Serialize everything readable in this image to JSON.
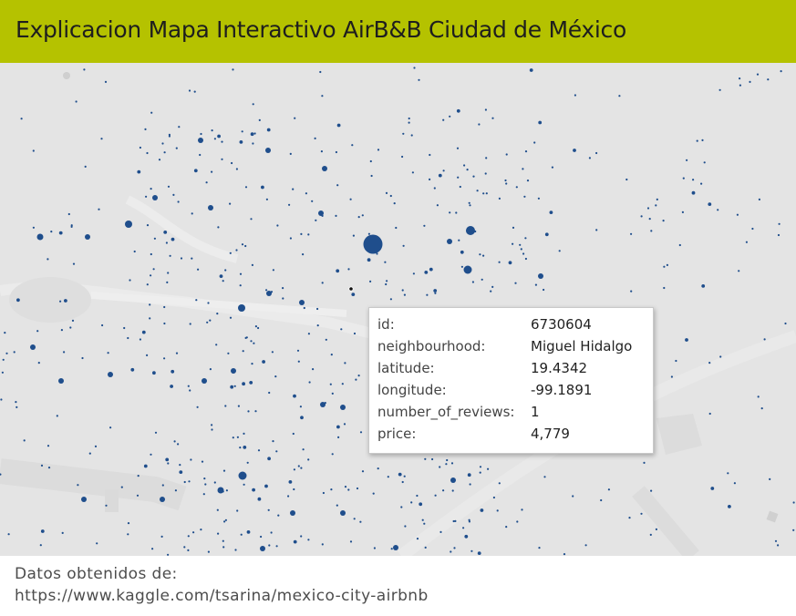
{
  "header": {
    "title": "Explicacion Mapa Interactivo AirB&B Ciudad de México",
    "background_color": "#b5c200"
  },
  "map": {
    "background_color": "#e4e4e4",
    "marker_color": "#1f4e8c",
    "selected_marker_color": "#111111"
  },
  "tooltip": {
    "rows": [
      {
        "key": "id:",
        "value": "6730604"
      },
      {
        "key": "neighbourhood:",
        "value": "Miguel Hidalgo"
      },
      {
        "key": "latitude:",
        "value": "19.4342"
      },
      {
        "key": "longitude:",
        "value": "-99.1891"
      },
      {
        "key": "number_of_reviews:",
        "value": "1"
      },
      {
        "key": "price:",
        "value": "4,779"
      }
    ]
  },
  "footer": {
    "line1": "Datos obtenidos de:",
    "line2": "https://www.kaggle.com/tsarina/mexico-city-airbnb"
  }
}
